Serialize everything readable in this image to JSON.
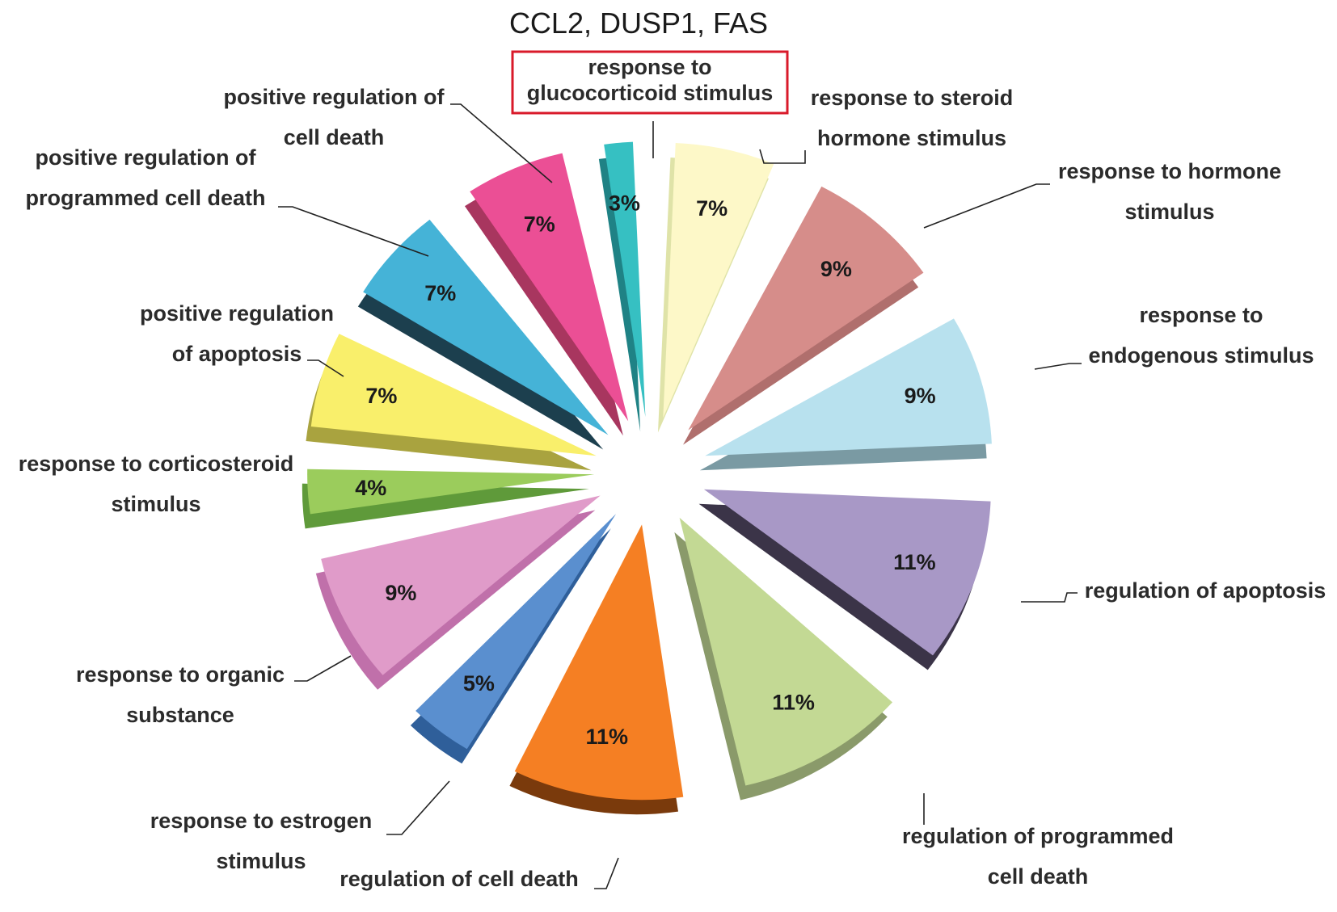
{
  "chart_data": {
    "type": "pie",
    "title": "CCL2, DUSP1, FAS",
    "exploded": true,
    "style": "3d",
    "highlighted_category": "response to glucocorticoid stimulus",
    "slices": [
      {
        "label_lines": [
          "response to steroid",
          "hormone stimulus"
        ],
        "value": 7,
        "value_label": "7%",
        "color": "#fdf8c8",
        "side_color": "#dfe3a8"
      },
      {
        "label_lines": [
          "response to hormone",
          "stimulus"
        ],
        "value": 9,
        "value_label": "9%",
        "color": "#d68d8a",
        "side_color": "#b06f6d"
      },
      {
        "label_lines": [
          "response to",
          "endogenous stimulus"
        ],
        "value": 9,
        "value_label": "9%",
        "color": "#b8e1ee",
        "side_color": "#7a9aa3"
      },
      {
        "label_lines": [
          "regulation of apoptosis"
        ],
        "value": 11,
        "value_label": "11%",
        "color": "#a898c6",
        "side_color": "#3b3448"
      },
      {
        "label_lines": [
          "regulation of programmed",
          "cell death"
        ],
        "value": 11,
        "value_label": "11%",
        "color": "#c3d994",
        "side_color": "#8a9a6a"
      },
      {
        "label_lines": [
          "regulation of cell death"
        ],
        "value": 11,
        "value_label": "11%",
        "color": "#f57f23",
        "side_color": "#7a3a0c"
      },
      {
        "label_lines": [
          "response to estrogen",
          "stimulus"
        ],
        "value": 5,
        "value_label": "5%",
        "color": "#5a8fcf",
        "side_color": "#2f5f9a"
      },
      {
        "label_lines": [
          "response to organic",
          "substance"
        ],
        "value": 9,
        "value_label": "9%",
        "color": "#e09bc9",
        "side_color": "#c070aa"
      },
      {
        "label_lines": [
          "response to corticosteroid",
          "stimulus"
        ],
        "value": 4,
        "value_label": "4%",
        "color": "#9bcc5c",
        "side_color": "#5f9a3a"
      },
      {
        "label_lines": [
          "positive regulation",
          "of apoptosis"
        ],
        "value": 7,
        "value_label": "7%",
        "color": "#f9ef6b",
        "side_color": "#a9a33f"
      },
      {
        "label_lines": [
          "positive regulation of",
          "programmed cell death"
        ],
        "value": 7,
        "value_label": "7%",
        "color": "#45b3d7",
        "side_color": "#1c3f4e"
      },
      {
        "label_lines": [
          "positive regulation of",
          "cell death"
        ],
        "value": 7,
        "value_label": "7%",
        "color": "#eb4f95",
        "side_color": "#a8365f"
      },
      {
        "label_lines": [
          "response to",
          "glucocorticoid stimulus"
        ],
        "value": 3,
        "value_label": "3%",
        "color": "#36c0c2",
        "side_color": "#1f8285"
      }
    ]
  }
}
